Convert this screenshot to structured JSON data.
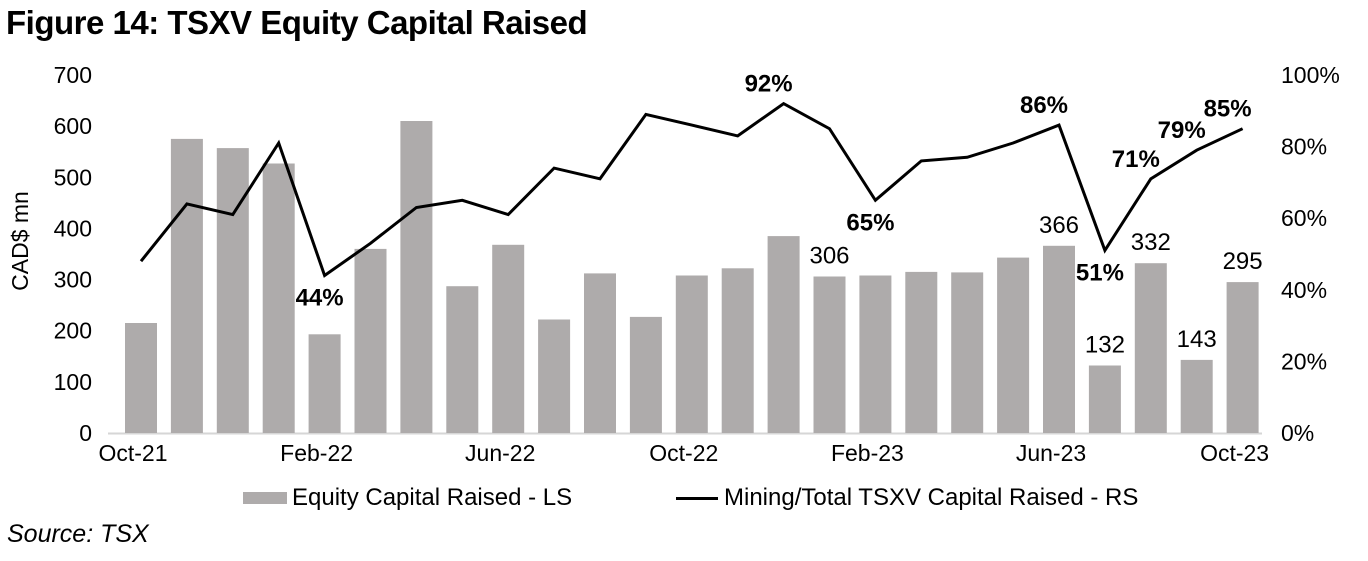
{
  "title": "Figure 14: TSXV Equity Capital Raised",
  "source": "Source: TSX",
  "colors": {
    "bar": "#AEABAB",
    "line": "#000000",
    "axis_line": "#D6D6D6",
    "text": "#000000",
    "background": "#FFFFFF"
  },
  "legend": {
    "items": [
      {
        "label": "Equity Capital Raised - LS",
        "marker": "bar-swatch"
      },
      {
        "label": "Mining/Total TSXV Capital Raised - RS",
        "marker": "line-swatch"
      }
    ]
  },
  "chart_data": {
    "type": "combo",
    "grid": false,
    "legend_position": "bottom",
    "categories": [
      "Oct-21",
      "Nov-21",
      "Dec-21",
      "Jan-22",
      "Feb-22",
      "Mar-22",
      "Apr-22",
      "May-22",
      "Jun-22",
      "Jul-22",
      "Aug-22",
      "Sep-22",
      "Oct-22",
      "Nov-22",
      "Dec-22",
      "Jan-23",
      "Feb-23",
      "Mar-23",
      "Apr-23",
      "May-23",
      "Jun-23",
      "Jul-23",
      "Aug-23",
      "Sep-23",
      "Oct-23"
    ],
    "series": [
      {
        "name": "Equity Capital Raised - LS",
        "type": "bar",
        "y_axis": "left",
        "values": [
          215,
          575,
          557,
          527,
          193,
          360,
          610,
          287,
          368,
          222,
          312,
          227,
          308,
          322,
          385,
          306,
          308,
          315,
          314,
          343,
          366,
          132,
          332,
          143,
          295
        ]
      },
      {
        "name": "Mining/Total TSXV Capital Raised - RS",
        "type": "line",
        "y_axis": "right",
        "values_percent": [
          48,
          64,
          61,
          81,
          44,
          53,
          63,
          65,
          61,
          74,
          71,
          89,
          86,
          83,
          92,
          85,
          65,
          76,
          77,
          81,
          86,
          51,
          71,
          79,
          85
        ]
      }
    ],
    "left_axis": {
      "label": "CAD$ mn",
      "min": 0,
      "max": 700,
      "tick_step": 100,
      "ticks": [
        700,
        600,
        500,
        400,
        300,
        200,
        100,
        0
      ]
    },
    "right_axis": {
      "min": "0%",
      "max": "100%",
      "tick_step": "20%",
      "ticks": [
        "100%",
        "80%",
        "60%",
        "40%",
        "20%",
        "0%"
      ]
    },
    "x_ticks": [
      {
        "label": "Oct-21",
        "category_index": 0
      },
      {
        "label": "Feb-22",
        "category_index": 4
      },
      {
        "label": "Jun-22",
        "category_index": 8
      },
      {
        "label": "Oct-22",
        "category_index": 12
      },
      {
        "label": "Feb-23",
        "category_index": 16
      },
      {
        "label": "Jun-23",
        "category_index": 20
      },
      {
        "label": "Oct-23",
        "category_index": 24
      }
    ],
    "bar_point_labels": [
      {
        "category": "Jan-23",
        "index": 15,
        "text": "306"
      },
      {
        "category": "Jun-23",
        "index": 20,
        "text": "366"
      },
      {
        "category": "Jul-23",
        "index": 21,
        "text": "132"
      },
      {
        "category": "Aug-23",
        "index": 22,
        "text": "332"
      },
      {
        "category": "Sep-23",
        "index": 23,
        "text": "143"
      },
      {
        "category": "Oct-23",
        "index": 24,
        "text": "295"
      }
    ],
    "line_point_labels": [
      {
        "category": "Feb-22",
        "index": 4,
        "text": "44%",
        "position": "below"
      },
      {
        "category": "Dec-22",
        "index": 14,
        "text": "92%",
        "position": "above"
      },
      {
        "category": "Feb-23",
        "index": 16,
        "text": "65%",
        "position": "below"
      },
      {
        "category": "Jun-23",
        "index": 20,
        "text": "86%",
        "position": "above"
      },
      {
        "category": "Jul-23",
        "index": 21,
        "text": "51%",
        "position": "below"
      },
      {
        "category": "Aug-23",
        "index": 22,
        "text": "71%",
        "position": "above"
      },
      {
        "category": "Sep-23",
        "index": 23,
        "text": "79%",
        "position": "above"
      },
      {
        "category": "Oct-23",
        "index": 24,
        "text": "85%",
        "position": "above"
      }
    ]
  }
}
